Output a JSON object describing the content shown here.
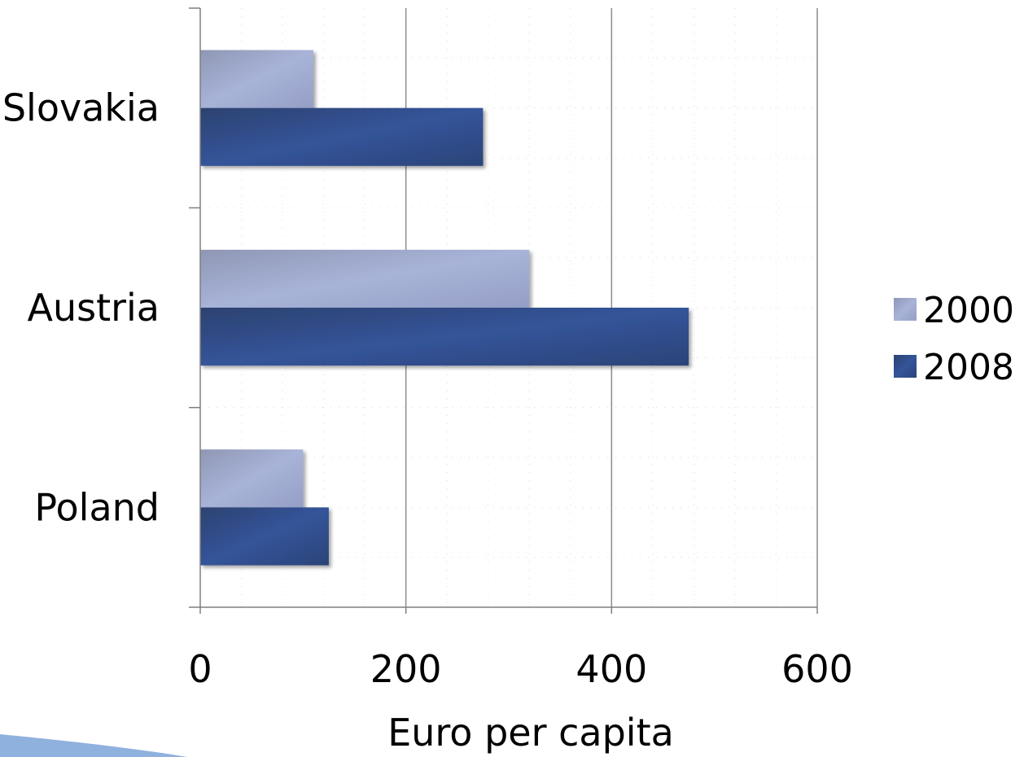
{
  "chart_data": {
    "type": "bar",
    "orientation": "horizontal",
    "categories": [
      "Slovakia",
      "Austria",
      "Poland"
    ],
    "series": [
      {
        "name": "2000",
        "values": [
          110,
          320,
          100
        ],
        "color": "#a3aed3"
      },
      {
        "name": "2008",
        "values": [
          275,
          475,
          125
        ],
        "color": "#2f4e8c"
      }
    ],
    "xlabel": "Euro per capita",
    "ylabel": "",
    "xlim": [
      0,
      600
    ],
    "xticks": [
      "0",
      "200",
      "400",
      "600"
    ],
    "grid": true,
    "legend_position": "right"
  }
}
